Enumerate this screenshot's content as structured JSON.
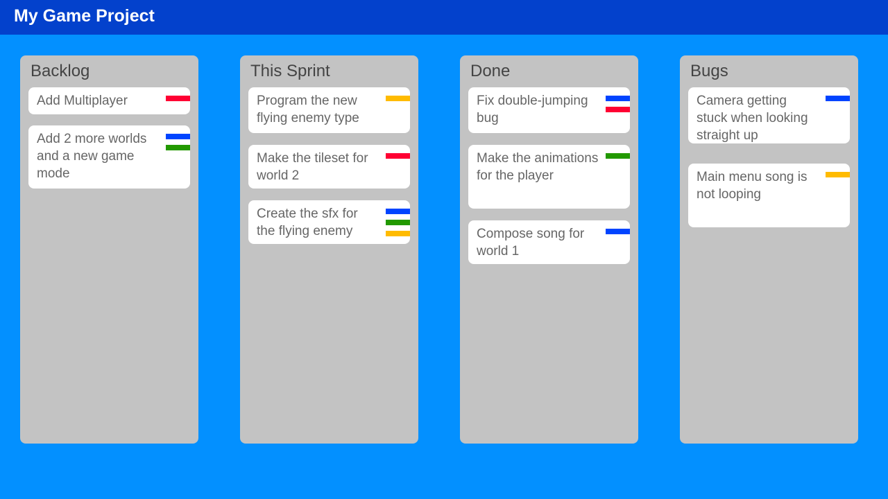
{
  "header": {
    "title": "My Game Project"
  },
  "tag_colors": {
    "red": "#ff0033",
    "yellow": "#ffbb00",
    "blue": "#0044ff",
    "green": "#229900"
  },
  "columns": [
    {
      "title": "Backlog",
      "cards": [
        {
          "text": "Add Multiplayer",
          "tags": [
            "red"
          ]
        },
        {
          "text": "Add 2 more worlds and a new game mode",
          "tags": [
            "blue",
            "green"
          ]
        }
      ]
    },
    {
      "title": "This Sprint",
      "cards": [
        {
          "text": "Program the new flying enemy type",
          "tags": [
            "yellow"
          ]
        },
        {
          "text": "Make the tileset for world 2",
          "tags": [
            "red"
          ]
        },
        {
          "text": "Create the sfx for the flying enemy",
          "tags": [
            "blue",
            "green",
            "yellow"
          ]
        }
      ]
    },
    {
      "title": "Done",
      "cards": [
        {
          "text": "Fix double-jumping bug",
          "tags": [
            "blue",
            "red"
          ]
        },
        {
          "text": "Make the animations for the player",
          "tags": [
            "green"
          ]
        },
        {
          "text": "Compose song for world 1",
          "tags": [
            "blue"
          ]
        }
      ]
    },
    {
      "title": "Bugs",
      "cards": [
        {
          "text": "Camera getting stuck when looking straight up",
          "tags": [
            "blue"
          ]
        },
        {
          "text": "Main menu song is not looping",
          "tags": [
            "yellow"
          ]
        }
      ]
    }
  ]
}
